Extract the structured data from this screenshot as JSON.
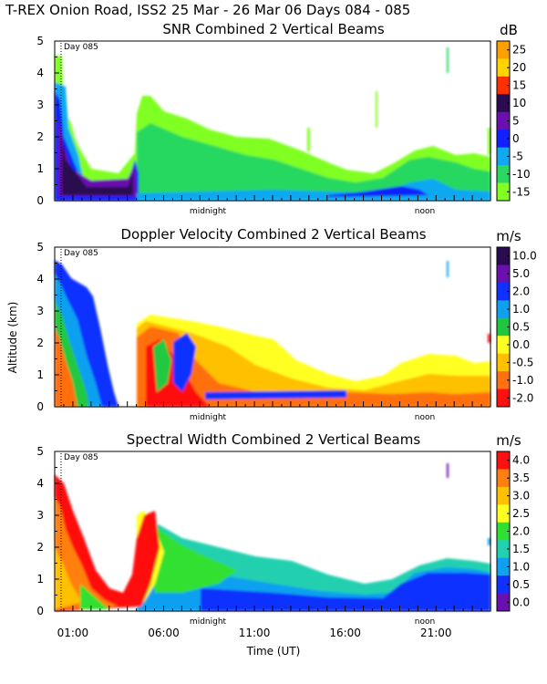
{
  "header": {
    "title": "T-REX Onion Road, ISS2  25 Mar - 26 Mar 06 Days 084 - 085"
  },
  "chart_data": [
    {
      "type": "heatmap",
      "title": "SNR Combined 2 Vertical Beams",
      "ylabel": "",
      "ylim": [
        0,
        5
      ],
      "yticks": [
        "0",
        "1",
        "2",
        "3",
        "4",
        "5"
      ],
      "day_marker": "Day 085",
      "x_annotations": [
        "midnight",
        "noon"
      ],
      "colorbar": {
        "unit": "dB",
        "labels": [
          "25",
          "20",
          "15",
          "10",
          "5",
          "0",
          "-5",
          "-10",
          "-15"
        ],
        "colors": [
          "#ffa000",
          "#ffd400",
          "#ff3000",
          "#2a0a50",
          "#6a10b0",
          "#1020ff",
          "#10a8f0",
          "#28d860",
          "#80ff20"
        ]
      }
    },
    {
      "type": "heatmap",
      "title": "Doppler Velocity Combined 2 Vertical Beams",
      "ylabel": "Altitude (km)",
      "ylim": [
        0,
        5
      ],
      "yticks": [
        "0",
        "1",
        "2",
        "3",
        "4",
        "5"
      ],
      "day_marker": "Day 085",
      "x_annotations": [
        "midnight",
        "noon"
      ],
      "colorbar": {
        "unit": "m/s",
        "labels": [
          "10.0",
          "5.0",
          "2.0",
          "1.0",
          "0.5",
          "0.0",
          "-0.5",
          "-1.0",
          "-2.0"
        ],
        "colors": [
          "#2a0a50",
          "#6a10b0",
          "#1030ff",
          "#10a0f0",
          "#20c840",
          "#ffff20",
          "#ffc000",
          "#ff7010",
          "#ff1010"
        ]
      }
    },
    {
      "type": "heatmap",
      "title": "Spectral Width Combined 2 Vertical Beams",
      "ylabel": "",
      "ylim": [
        0,
        5
      ],
      "yticks": [
        "0",
        "1",
        "2",
        "3",
        "4",
        "5"
      ],
      "day_marker": "Day 085",
      "x_annotations": [
        "midnight",
        "noon"
      ],
      "xlabel": "Time (UT)",
      "xticks": [
        "01:00",
        "06:00",
        "11:00",
        "16:00",
        "21:00"
      ],
      "colorbar": {
        "unit": "m/s",
        "labels": [
          "4.0",
          "3.5",
          "3.0",
          "2.5",
          "2.0",
          "1.5",
          "1.0",
          "0.5",
          "0.0"
        ],
        "colors": [
          "#ff1010",
          "#ff8010",
          "#ffc000",
          "#ffff20",
          "#30e030",
          "#20d0b0",
          "#10a0f0",
          "#1030ff",
          "#6a10b0"
        ]
      }
    }
  ]
}
